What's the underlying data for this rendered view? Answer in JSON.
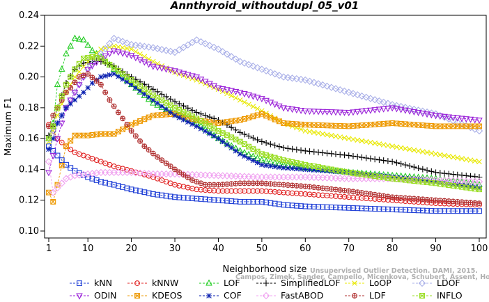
{
  "chart_data": {
    "type": "line",
    "title": "Annthyroid_withoutdupl_05_v01",
    "xlabel": "Neighborhood size",
    "ylabel": "Maximum F1",
    "xlim": [
      1,
      100
    ],
    "ylim": [
      0.1,
      0.24
    ],
    "x_ticks": [
      1,
      10,
      20,
      30,
      40,
      50,
      60,
      70,
      80,
      90,
      100
    ],
    "y_ticks": [
      "0.10",
      "0.12",
      "0.14",
      "0.16",
      "0.18",
      "0.20",
      "0.22",
      "0.24"
    ],
    "grid": false,
    "legend_position": "bottom",
    "watermark": [
      "Unsupervised Outlier Detection. DAMI, 2015.",
      "Campos, Zimek, Sander, Campello, Micenkova, Schubert, Assent, Houle"
    ],
    "series": [
      {
        "name": "kNN",
        "color": "#1f3fd6",
        "marker": "square",
        "x": [
          1,
          2,
          3,
          5,
          7,
          10,
          13,
          16,
          20,
          25,
          30,
          35,
          40,
          45,
          50,
          55,
          60,
          70,
          80,
          90,
          100
        ],
        "values": [
          0.155,
          0.152,
          0.149,
          0.143,
          0.139,
          0.135,
          0.132,
          0.13,
          0.127,
          0.124,
          0.122,
          0.121,
          0.12,
          0.119,
          0.119,
          0.117,
          0.116,
          0.115,
          0.114,
          0.113,
          0.113
        ]
      },
      {
        "name": "kNNW",
        "color": "#e02020",
        "marker": "circle",
        "x": [
          1,
          2,
          3,
          5,
          7,
          10,
          13,
          16,
          20,
          25,
          30,
          35,
          40,
          45,
          50,
          55,
          60,
          70,
          80,
          90,
          100
        ],
        "values": [
          0.169,
          0.165,
          0.16,
          0.155,
          0.151,
          0.148,
          0.145,
          0.142,
          0.139,
          0.135,
          0.13,
          0.127,
          0.126,
          0.126,
          0.126,
          0.125,
          0.124,
          0.122,
          0.12,
          0.118,
          0.117
        ]
      },
      {
        "name": "LOF",
        "color": "#22cc22",
        "marker": "triangle",
        "x": [
          1,
          2,
          3,
          5,
          7,
          9,
          11,
          13,
          16,
          20,
          25,
          30,
          35,
          40,
          45,
          50,
          55,
          60,
          70,
          80,
          90,
          100
        ],
        "values": [
          0.16,
          0.17,
          0.195,
          0.215,
          0.225,
          0.224,
          0.217,
          0.213,
          0.205,
          0.195,
          0.183,
          0.176,
          0.17,
          0.16,
          0.152,
          0.146,
          0.143,
          0.141,
          0.138,
          0.136,
          0.134,
          0.13
        ]
      },
      {
        "name": "SimplifiedLOF",
        "color": "#000000",
        "marker": "plus",
        "x": [
          1,
          2,
          3,
          5,
          7,
          9,
          11,
          13,
          16,
          20,
          25,
          30,
          35,
          40,
          45,
          50,
          55,
          60,
          70,
          80,
          90,
          100
        ],
        "values": [
          0.162,
          0.168,
          0.18,
          0.196,
          0.205,
          0.209,
          0.21,
          0.21,
          0.207,
          0.2,
          0.192,
          0.184,
          0.177,
          0.172,
          0.164,
          0.158,
          0.154,
          0.152,
          0.149,
          0.145,
          0.138,
          0.135
        ]
      },
      {
        "name": "LoOP",
        "color": "#e8e800",
        "marker": "cross",
        "x": [
          1,
          2,
          3,
          5,
          7,
          10,
          13,
          16,
          20,
          25,
          30,
          35,
          40,
          45,
          50,
          55,
          60,
          70,
          80,
          90,
          100
        ],
        "values": [
          0.158,
          0.165,
          0.175,
          0.19,
          0.2,
          0.21,
          0.218,
          0.22,
          0.218,
          0.21,
          0.203,
          0.198,
          0.192,
          0.185,
          0.178,
          0.17,
          0.165,
          0.16,
          0.155,
          0.15,
          0.145
        ]
      },
      {
        "name": "LDOF",
        "color": "#aab0e8",
        "marker": "diamond",
        "x": [
          1,
          3,
          5,
          8,
          10,
          13,
          16,
          20,
          25,
          30,
          35,
          40,
          45,
          50,
          55,
          60,
          70,
          80,
          90,
          100
        ],
        "values": [
          0.16,
          0.17,
          0.18,
          0.195,
          0.205,
          0.215,
          0.225,
          0.221,
          0.219,
          0.216,
          0.224,
          0.218,
          0.21,
          0.205,
          0.2,
          0.198,
          0.19,
          0.182,
          0.176,
          0.165
        ]
      },
      {
        "name": "ODIN",
        "color": "#9a22d8",
        "marker": "triangle-down",
        "x": [
          1,
          3,
          5,
          8,
          10,
          13,
          16,
          20,
          25,
          30,
          35,
          40,
          45,
          50,
          55,
          60,
          70,
          80,
          90,
          100
        ],
        "values": [
          0.138,
          0.16,
          0.18,
          0.195,
          0.205,
          0.212,
          0.217,
          0.214,
          0.207,
          0.204,
          0.2,
          0.193,
          0.19,
          0.186,
          0.18,
          0.178,
          0.177,
          0.18,
          0.175,
          0.172
        ]
      },
      {
        "name": "KDEOS",
        "color": "#ee9900",
        "marker": "square-x",
        "x": [
          1,
          2,
          3,
          5,
          7,
          10,
          13,
          16,
          20,
          25,
          30,
          35,
          40,
          45,
          50,
          55,
          60,
          70,
          80,
          90,
          100
        ],
        "values": [
          0.125,
          0.119,
          0.13,
          0.155,
          0.162,
          0.162,
          0.163,
          0.163,
          0.169,
          0.175,
          0.176,
          0.172,
          0.17,
          0.172,
          0.176,
          0.17,
          0.169,
          0.168,
          0.17,
          0.168,
          0.168
        ]
      },
      {
        "name": "COF",
        "color": "#0a1fb0",
        "marker": "asterisk",
        "x": [
          1,
          2,
          3,
          5,
          7,
          9,
          11,
          13,
          16,
          20,
          25,
          30,
          35,
          40,
          45,
          50,
          55,
          60,
          70,
          80,
          90,
          100
        ],
        "values": [
          0.153,
          0.16,
          0.17,
          0.18,
          0.185,
          0.19,
          0.196,
          0.2,
          0.202,
          0.195,
          0.185,
          0.175,
          0.168,
          0.16,
          0.15,
          0.143,
          0.141,
          0.14,
          0.138,
          0.135,
          0.132,
          0.128
        ]
      },
      {
        "name": "FastABOD",
        "color": "#f0a0f0",
        "marker": "diamond",
        "x": [
          1,
          2,
          3,
          5,
          7,
          10,
          13,
          16,
          20,
          25,
          30,
          40,
          50,
          60,
          70,
          80,
          90,
          100
        ],
        "values": [
          0.145,
          0.125,
          0.128,
          0.134,
          0.136,
          0.137,
          0.138,
          0.138,
          0.138,
          0.137,
          0.137,
          0.136,
          0.135,
          0.135,
          0.134,
          0.134,
          0.133,
          0.132
        ]
      },
      {
        "name": "LDF",
        "color": "#b03030",
        "marker": "circle-plus",
        "x": [
          1,
          2,
          3,
          4,
          5,
          6,
          8,
          10,
          13,
          15,
          17,
          20,
          23,
          26,
          30,
          34,
          37,
          40,
          45,
          50,
          60,
          70,
          80,
          90,
          100
        ],
        "values": [
          0.168,
          0.175,
          0.18,
          0.185,
          0.19,
          0.193,
          0.2,
          0.202,
          0.195,
          0.185,
          0.177,
          0.165,
          0.155,
          0.148,
          0.14,
          0.133,
          0.13,
          0.13,
          0.131,
          0.131,
          0.129,
          0.126,
          0.122,
          0.12,
          0.118
        ]
      },
      {
        "name": "INFLO",
        "color": "#99dd22",
        "marker": "square-x",
        "x": [
          1,
          2,
          3,
          5,
          7,
          9,
          11,
          13,
          16,
          20,
          25,
          30,
          35,
          40,
          45,
          50,
          55,
          60,
          70,
          80,
          90,
          100
        ],
        "values": [
          0.16,
          0.168,
          0.18,
          0.195,
          0.205,
          0.212,
          0.213,
          0.212,
          0.206,
          0.198,
          0.188,
          0.18,
          0.173,
          0.165,
          0.158,
          0.15,
          0.146,
          0.143,
          0.138,
          0.134,
          0.131,
          0.127
        ]
      }
    ]
  }
}
